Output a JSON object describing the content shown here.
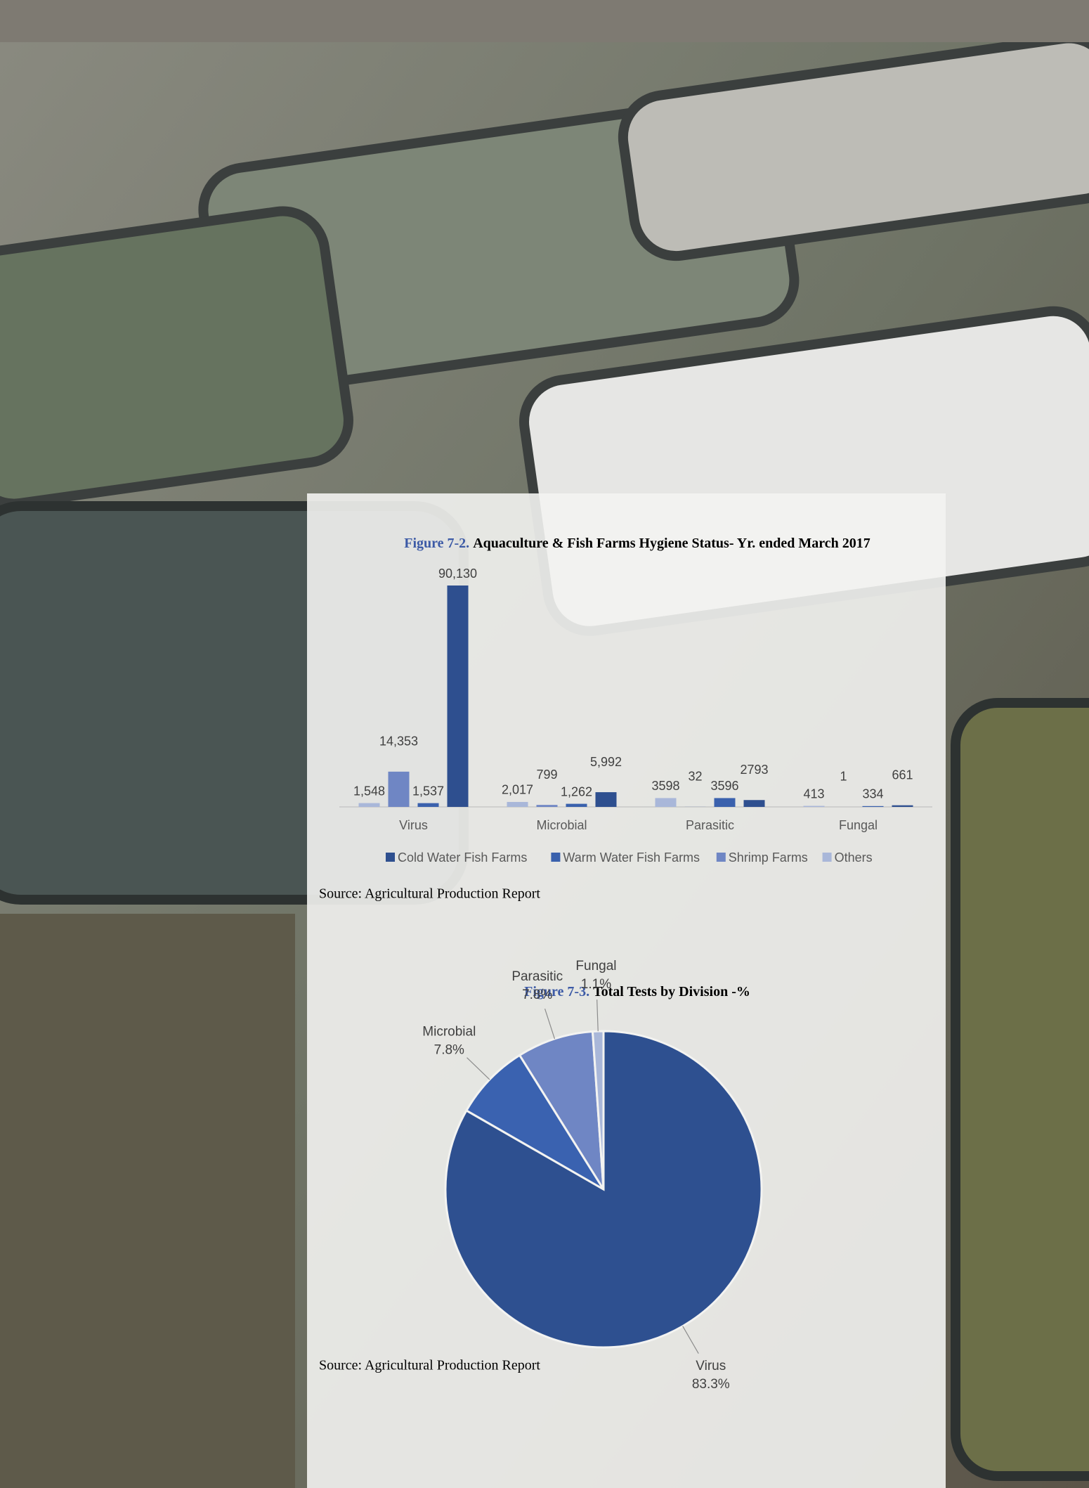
{
  "chart_data": [
    {
      "type": "bar",
      "figure_label": "Figure 7-2.",
      "title": "Aquaculture & Fish Farms Hygiene Status- Yr. ended March 2017",
      "categories": [
        "Virus",
        "Microbial",
        "Parasitic",
        "Fungal"
      ],
      "series": [
        {
          "name": "Cold Water Fish Farms",
          "color": "#2e4f8f",
          "values": [
            90130,
            5992,
            2793,
            661
          ],
          "value_labels": [
            "90,130",
            "5,992",
            "2793",
            "661"
          ]
        },
        {
          "name": "Warm Water Fish Farms",
          "color": "#3a61ad",
          "values": [
            1537,
            1262,
            3596,
            334
          ],
          "value_labels": [
            "1,537",
            "1,262",
            "3596",
            "334"
          ]
        },
        {
          "name": "Shrimp Farms",
          "color": "#6f86c4",
          "values": [
            14353,
            799,
            32,
            1
          ],
          "value_labels": [
            "14,353",
            "799",
            "32",
            "1"
          ]
        },
        {
          "name": "Others",
          "color": "#a9b7d9",
          "values": [
            1548,
            2017,
            3598,
            413
          ],
          "value_labels": [
            "1,548",
            "2,017",
            "3598",
            "413"
          ]
        }
      ],
      "source": "Source: Agricultural Production Report"
    },
    {
      "type": "pie",
      "figure_label": "Figure 7-3.",
      "title": "Total Tests by Division -%",
      "categories": [
        "Virus",
        "Microbial",
        "Parasitic",
        "Fungal"
      ],
      "values": [
        83.3,
        7.8,
        7.8,
        1.1
      ],
      "value_labels": [
        "83.3%",
        "7.8%",
        "7.8%",
        "1.1%"
      ],
      "colors": [
        "#2e5090",
        "#3a62b0",
        "#6f86c4",
        "#a9b7d9"
      ],
      "source": "Source: Agricultural Production Report"
    }
  ]
}
